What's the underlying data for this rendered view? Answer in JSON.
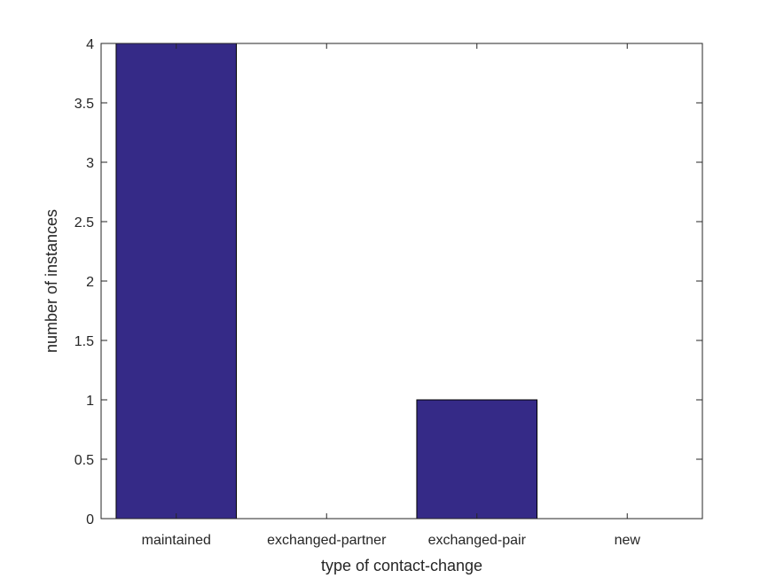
{
  "chart_data": {
    "type": "bar",
    "categories": [
      "maintained",
      "exchanged-partner",
      "exchanged-pair",
      "new"
    ],
    "values": [
      4,
      0,
      1,
      0
    ],
    "title": "",
    "xlabel": "type of contact-change",
    "ylabel": "number of instances",
    "ylim": [
      0,
      4
    ],
    "yticks": [
      "0",
      "0.5",
      "1",
      "1.5",
      "2",
      "2.5",
      "3",
      "3.5",
      "4"
    ],
    "grid": false,
    "bar_color": "#352A87"
  }
}
